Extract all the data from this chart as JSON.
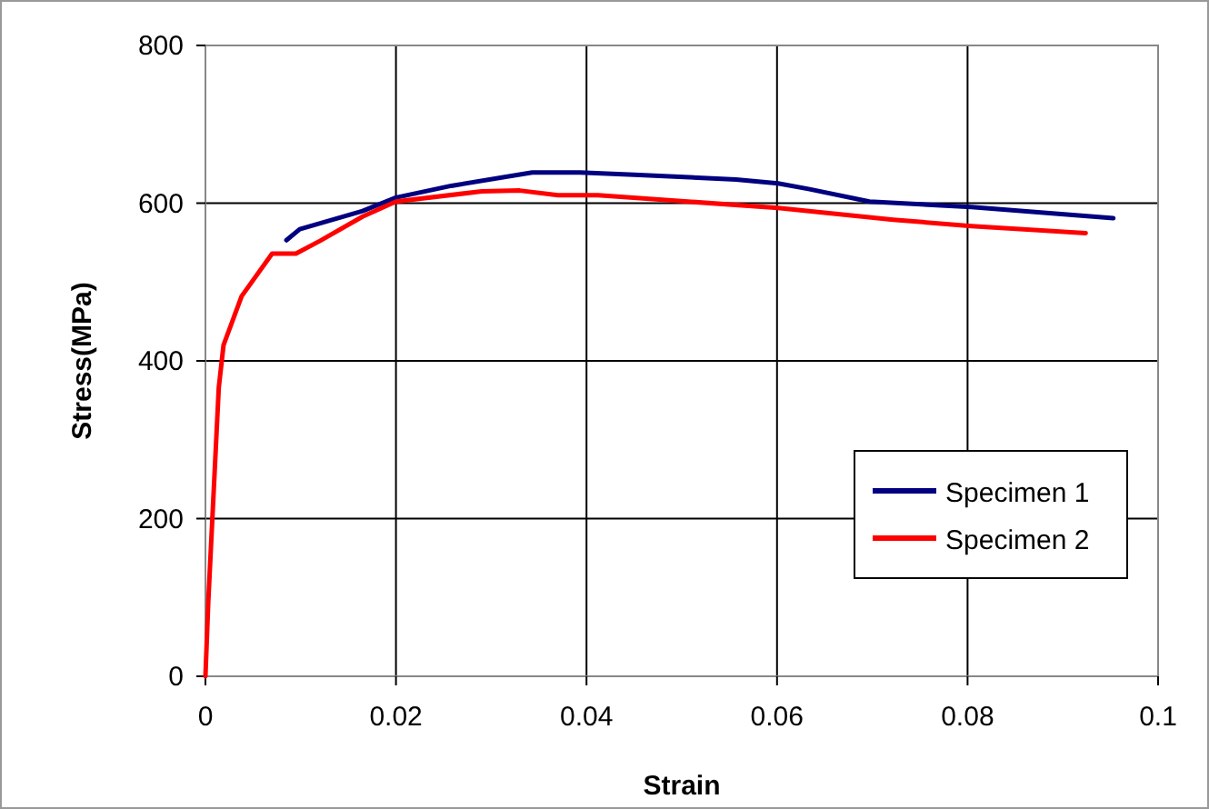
{
  "chart_data": {
    "type": "line",
    "xlabel": "Strain",
    "ylabel": "Stress(MPa)",
    "xlim": [
      0,
      0.1
    ],
    "xticks": [
      0,
      0.02,
      0.04,
      0.06,
      0.08,
      0.1
    ],
    "ylim": [
      0,
      800
    ],
    "yticks": [
      0,
      200,
      400,
      600,
      800
    ],
    "grid": true,
    "legend": "right",
    "marker": "none",
    "line_style": "solid",
    "series": [
      {
        "name": "Specimen 1",
        "color": "#000080",
        "x": [
          0.0085,
          0.0099,
          0.0165,
          0.02,
          0.0258,
          0.0343,
          0.0393,
          0.045,
          0.0557,
          0.0601,
          0.0633,
          0.0697,
          0.0804,
          0.0953
        ],
        "values": [
          553,
          567,
          590,
          607,
          622,
          639,
          639,
          636,
          630,
          625,
          618,
          602,
          595,
          581
        ]
      },
      {
        "name": "Specimen 2",
        "color": "#ff0000",
        "x": [
          0,
          0.0003,
          0.0014,
          0.0019,
          0.0038,
          0.007,
          0.0095,
          0.012,
          0.0165,
          0.02,
          0.029,
          0.033,
          0.037,
          0.0412,
          0.0601,
          0.0722,
          0.0804,
          0.0924
        ],
        "values": [
          0,
          95,
          366,
          420,
          482,
          536,
          536,
          552,
          583,
          602,
          615,
          616,
          610,
          610,
          594,
          579,
          571,
          562
        ]
      }
    ]
  }
}
